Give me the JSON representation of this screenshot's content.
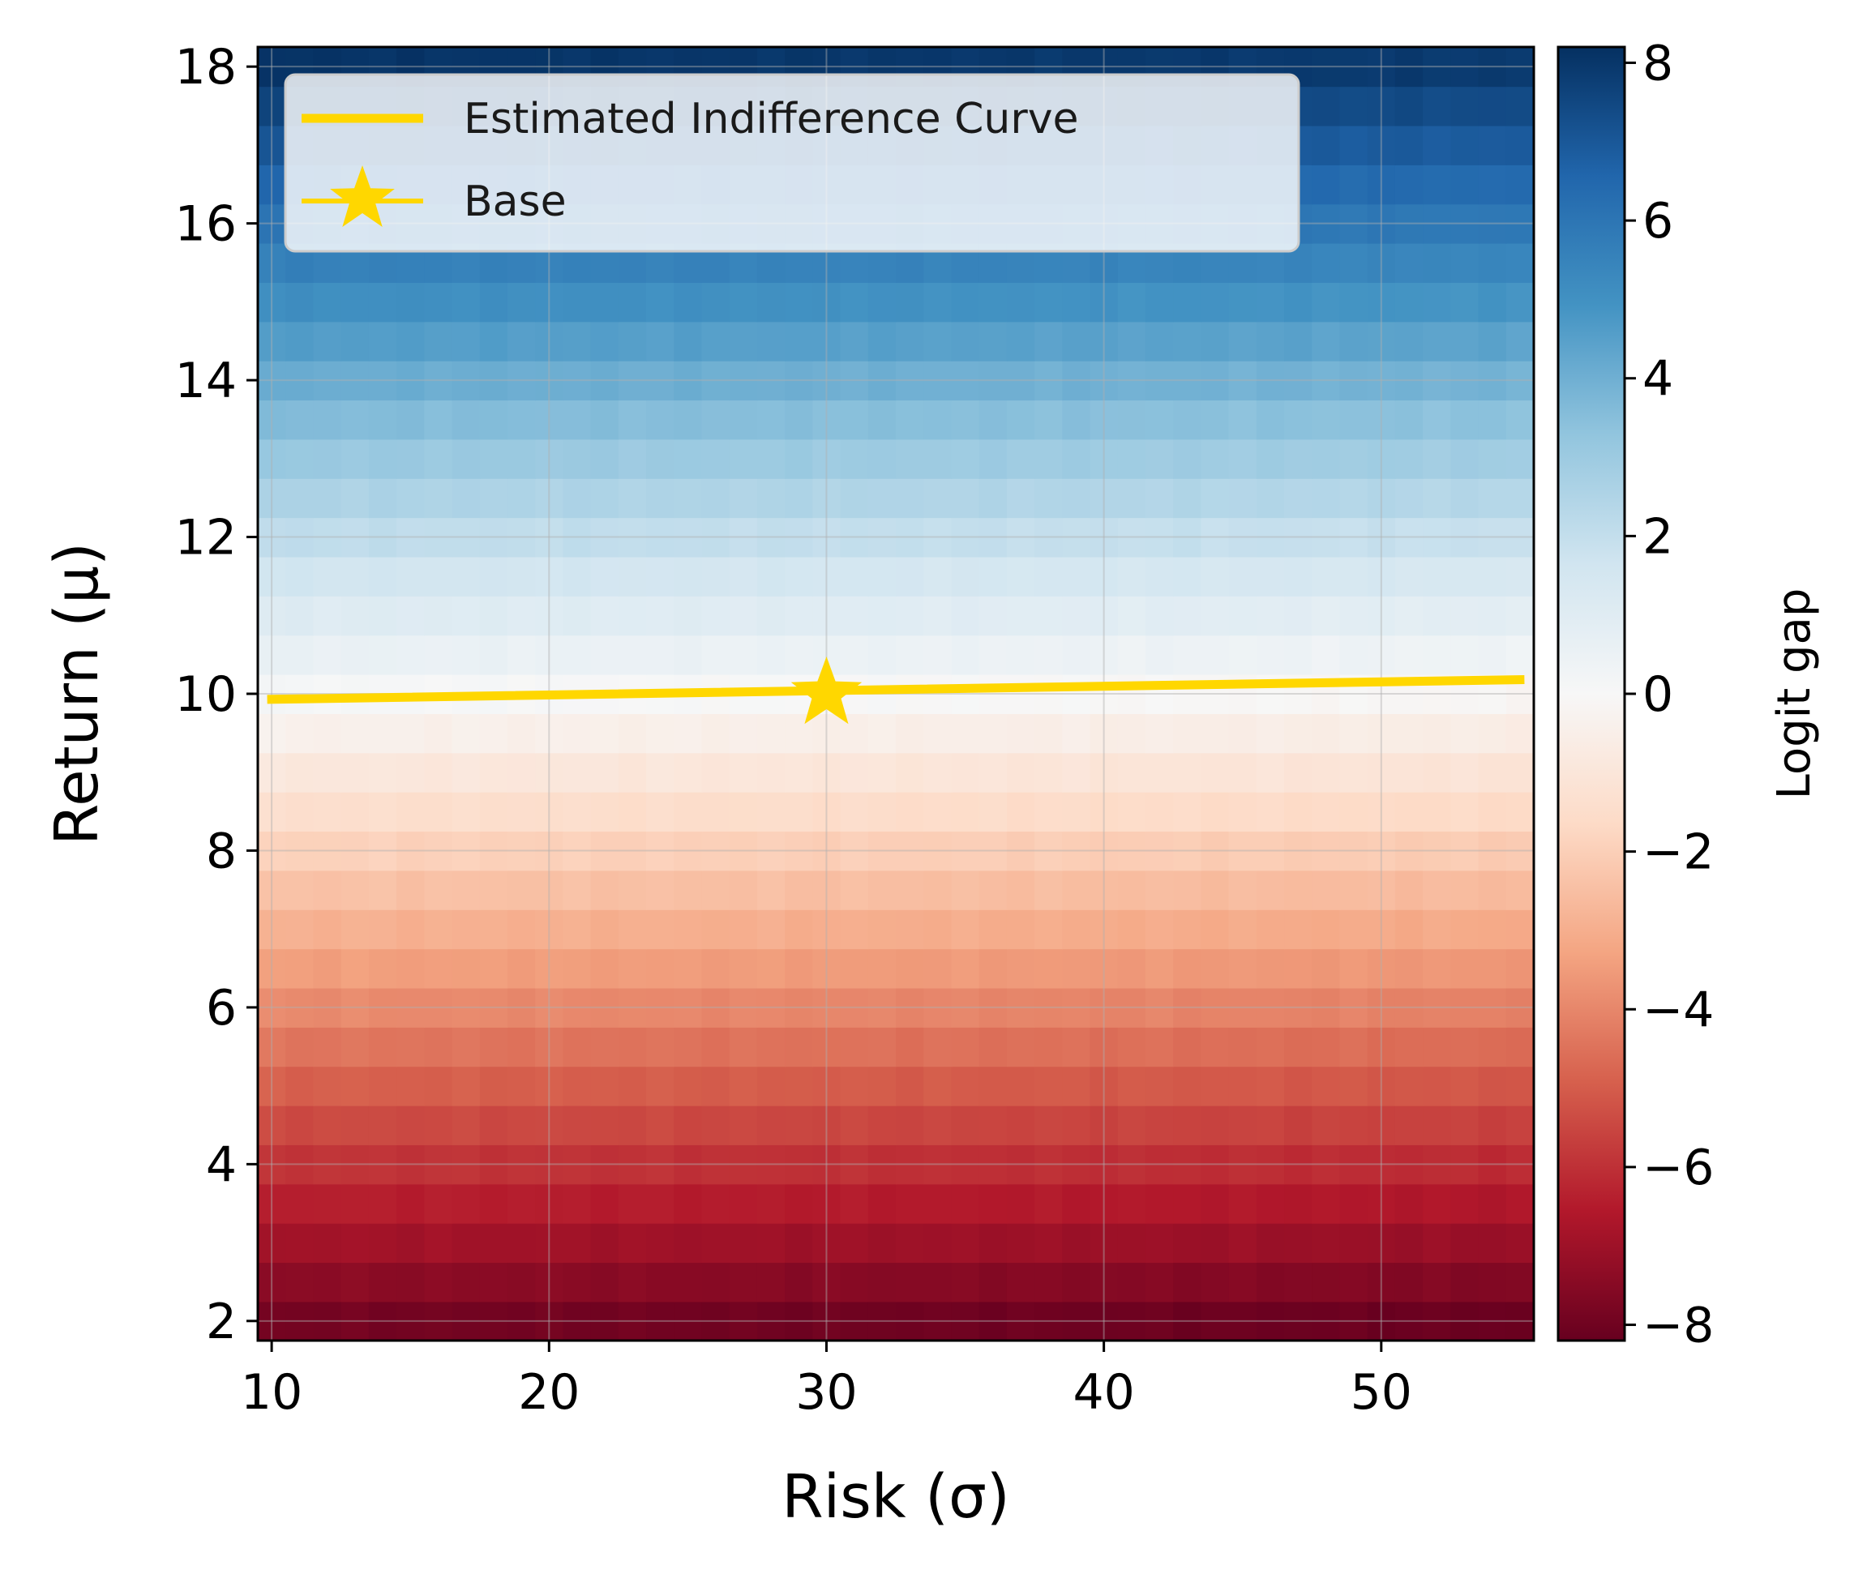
{
  "chart_data": {
    "type": "heatmap",
    "xlabel": "Risk (σ)",
    "ylabel": "Return (μ)",
    "colorbar_label": "Logit gap",
    "colormap": "RdBu",
    "xlim": [
      9.5,
      55.5
    ],
    "ylim": [
      1.75,
      18.25
    ],
    "x_ticks": [
      10,
      20,
      30,
      40,
      50
    ],
    "y_ticks": [
      2,
      4,
      6,
      8,
      10,
      12,
      14,
      16,
      18
    ],
    "colorbar_range": [
      -8.2,
      8.2
    ],
    "colorbar_ticks": [
      -8,
      -6,
      -4,
      -2,
      0,
      2,
      4,
      6,
      8
    ],
    "grid": true,
    "legend_position": "upper-left",
    "heatmap": {
      "x_range": [
        10,
        55
      ],
      "x_cells": 46,
      "y_range": [
        2,
        18
      ],
      "y_cells": 33,
      "value_model": "logit_gap ≈ 1.0·(μ − 10) − 0.005·(σ − 30)",
      "values_by_return": [
        {
          "return": 2,
          "logit_gap": -8.0
        },
        {
          "return": 4,
          "logit_gap": -6.0
        },
        {
          "return": 6,
          "logit_gap": -4.0
        },
        {
          "return": 8,
          "logit_gap": -2.0
        },
        {
          "return": 10,
          "logit_gap": 0.0
        },
        {
          "return": 12,
          "logit_gap": 2.0
        },
        {
          "return": 14,
          "logit_gap": 4.0
        },
        {
          "return": 16,
          "logit_gap": 6.0
        },
        {
          "return": 18,
          "logit_gap": 8.0
        }
      ]
    },
    "series": [
      {
        "name": "Estimated Indifference Curve",
        "type": "line",
        "color": "#FFD700",
        "x": [
          10,
          55
        ],
        "y": [
          9.93,
          10.18
        ]
      },
      {
        "name": "Base",
        "type": "marker",
        "marker": "star",
        "color": "#FFD700",
        "x": [
          30
        ],
        "y": [
          10.0
        ]
      }
    ]
  }
}
